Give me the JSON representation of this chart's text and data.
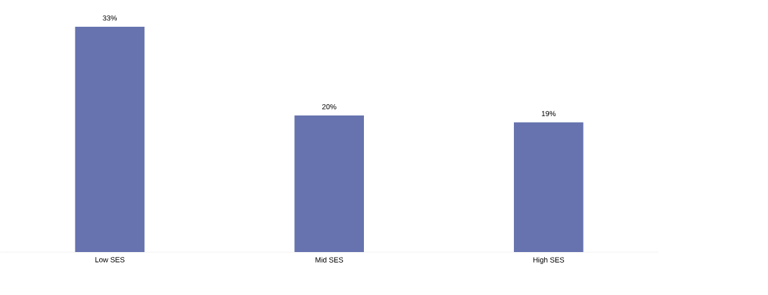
{
  "chart_data": {
    "type": "bar",
    "categories": [
      "Low SES",
      "Mid SES",
      "High SES"
    ],
    "values": [
      33,
      20,
      19
    ],
    "value_labels": [
      "33%",
      "20%",
      "19%"
    ],
    "color": "#6673ae"
  }
}
